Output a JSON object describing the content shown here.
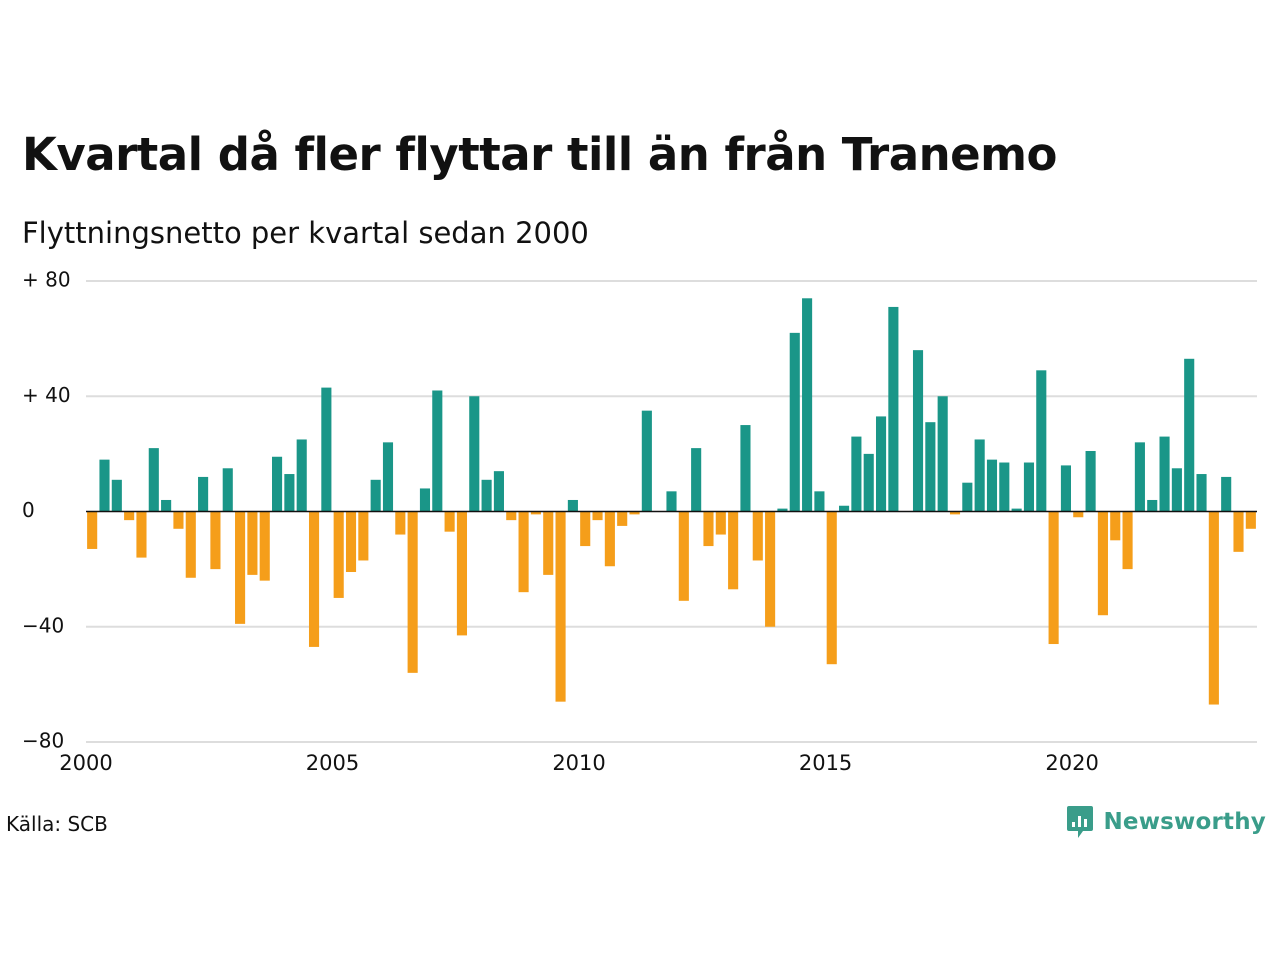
{
  "title": "Kvartal då fler flyttar till än från Tranemo",
  "subtitle": "Flyttningsnetto per kvartal sedan 2000",
  "source": "Källa: SCB",
  "brand": {
    "name": "Newsworthy",
    "icon": "newsworthy-logo-icon",
    "color": "#3a9d8a"
  },
  "chart_data": {
    "type": "bar",
    "title": "Kvartal då fler flyttar till än från Tranemo",
    "subtitle": "Flyttningsnetto per kvartal sedan 2000",
    "xlabel": "",
    "ylabel": "",
    "start": "2000 Q1",
    "ylim": [
      -80,
      80
    ],
    "yticks": [
      80,
      40,
      0,
      -40,
      -80
    ],
    "ytick_labels": [
      "+ 80",
      "+ 40",
      "0",
      "−40",
      "−80"
    ],
    "xticks": [
      2000,
      2005,
      2010,
      2015,
      2020
    ],
    "grid": true,
    "colors": {
      "positive": "#1a9688",
      "negative": "#f59e1a",
      "grid": "#dddddd",
      "zero": "#111111"
    },
    "values": [
      -13,
      18,
      11,
      -3,
      -16,
      22,
      4,
      -6,
      -23,
      12,
      -20,
      15,
      -39,
      -22,
      -24,
      19,
      13,
      25,
      -47,
      43,
      -30,
      -21,
      -17,
      11,
      24,
      -8,
      -56,
      8,
      42,
      -7,
      -43,
      40,
      11,
      14,
      -3,
      -28,
      -1,
      -22,
      -66,
      4,
      -12,
      -3,
      -19,
      -5,
      -1,
      35,
      0,
      7,
      -31,
      22,
      -12,
      -8,
      -27,
      30,
      -17,
      -40,
      1,
      62,
      74,
      7,
      -53,
      2,
      26,
      20,
      33,
      71,
      0,
      56,
      31,
      40,
      -1,
      10,
      25,
      18,
      17,
      1,
      17,
      49,
      -46,
      16,
      -2,
      21,
      -36,
      -10,
      -20,
      24,
      4,
      26,
      15,
      53,
      13,
      -67,
      12,
      -14,
      -6
    ]
  }
}
